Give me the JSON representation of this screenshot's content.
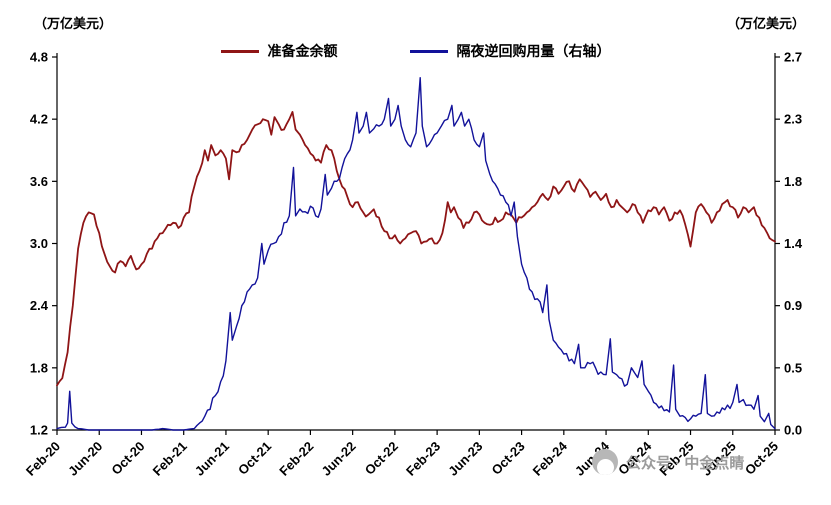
{
  "watermark": {
    "text": "公众号 · 中金点睛"
  },
  "chart_data": {
    "type": "line",
    "title": "",
    "grid": false,
    "legend_position": "top",
    "x_domain": [
      0,
      68
    ],
    "x_tick_positions": [
      0,
      4,
      8,
      12,
      16,
      20,
      24,
      28,
      32,
      36,
      40,
      44,
      48,
      52,
      56,
      60,
      64,
      68
    ],
    "x_tick_labels": [
      "Feb-20",
      "Jun-20",
      "Oct-20",
      "Feb-21",
      "Jun-21",
      "Oct-21",
      "Feb-22",
      "Jun-22",
      "Oct-22",
      "Feb-23",
      "Jun-23",
      "Oct-23",
      "Feb-24",
      "Jun-24",
      "Oct-24",
      "Feb-25",
      "Jun-25",
      "Oct-25"
    ],
    "left_axis": {
      "label": "（万亿美元）",
      "range": [
        1.2,
        4.8
      ],
      "ticks": [
        "4.8",
        "4.2",
        "3.6",
        "3.0",
        "2.4",
        "1.8",
        "1.2"
      ]
    },
    "right_axis": {
      "label": "（万亿美元）",
      "range": [
        0,
        2.7
      ],
      "ticks": [
        "2.7",
        "2.3",
        "1.8",
        "1.4",
        "0.9",
        "0.5",
        "0.0"
      ]
    },
    "series": [
      {
        "name": "准备金余额",
        "axis": "left",
        "color": "#8F1516",
        "width": 1.8,
        "noise": 0.03,
        "points": [
          [
            0,
            1.63
          ],
          [
            0.5,
            1.7
          ],
          [
            1,
            1.95
          ],
          [
            1.5,
            2.4
          ],
          [
            2,
            2.95
          ],
          [
            2.5,
            3.2
          ],
          [
            3,
            3.3
          ],
          [
            3.5,
            3.28
          ],
          [
            4,
            3.1
          ],
          [
            4.5,
            2.9
          ],
          [
            5,
            2.78
          ],
          [
            5.5,
            2.72
          ],
          [
            6,
            2.83
          ],
          [
            6.5,
            2.78
          ],
          [
            7,
            2.88
          ],
          [
            7.5,
            2.75
          ],
          [
            8,
            2.8
          ],
          [
            8.5,
            2.9
          ],
          [
            9,
            2.95
          ],
          [
            9.5,
            3.05
          ],
          [
            10,
            3.1
          ],
          [
            10.5,
            3.18
          ],
          [
            11,
            3.2
          ],
          [
            11.5,
            3.15
          ],
          [
            12,
            3.25
          ],
          [
            12.5,
            3.3
          ],
          [
            13,
            3.55
          ],
          [
            13.5,
            3.7
          ],
          [
            14,
            3.9
          ],
          [
            14.3,
            3.8
          ],
          [
            14.6,
            3.95
          ],
          [
            15,
            3.85
          ],
          [
            15.5,
            3.9
          ],
          [
            16,
            3.82
          ],
          [
            16.3,
            3.62
          ],
          [
            16.6,
            3.9
          ],
          [
            17,
            3.88
          ],
          [
            17.5,
            3.95
          ],
          [
            18,
            4.0
          ],
          [
            18.5,
            4.1
          ],
          [
            19,
            4.15
          ],
          [
            19.5,
            4.2
          ],
          [
            20,
            4.18
          ],
          [
            20.3,
            4.05
          ],
          [
            20.6,
            4.22
          ],
          [
            21,
            4.15
          ],
          [
            21.5,
            4.1
          ],
          [
            22,
            4.2
          ],
          [
            22.3,
            4.27
          ],
          [
            22.6,
            4.1
          ],
          [
            23,
            4.05
          ],
          [
            23.5,
            3.95
          ],
          [
            24,
            3.87
          ],
          [
            24.5,
            3.8
          ],
          [
            25,
            3.78
          ],
          [
            25.5,
            3.95
          ],
          [
            26,
            3.9
          ],
          [
            26.5,
            3.7
          ],
          [
            27,
            3.55
          ],
          [
            27.5,
            3.45
          ],
          [
            28,
            3.35
          ],
          [
            28.5,
            3.4
          ],
          [
            29,
            3.3
          ],
          [
            29.5,
            3.28
          ],
          [
            30,
            3.33
          ],
          [
            30.5,
            3.25
          ],
          [
            31,
            3.12
          ],
          [
            31.5,
            3.05
          ],
          [
            32,
            3.08
          ],
          [
            32.5,
            3.0
          ],
          [
            33,
            3.05
          ],
          [
            33.5,
            3.1
          ],
          [
            34,
            3.12
          ],
          [
            34.5,
            3.0
          ],
          [
            35,
            3.02
          ],
          [
            35.5,
            3.05
          ],
          [
            36,
            3.0
          ],
          [
            36.5,
            3.1
          ],
          [
            37,
            3.4
          ],
          [
            37.3,
            3.3
          ],
          [
            37.6,
            3.35
          ],
          [
            38,
            3.25
          ],
          [
            38.5,
            3.15
          ],
          [
            39,
            3.2
          ],
          [
            39.5,
            3.3
          ],
          [
            40,
            3.28
          ],
          [
            40.5,
            3.2
          ],
          [
            41,
            3.18
          ],
          [
            41.5,
            3.25
          ],
          [
            42,
            3.22
          ],
          [
            42.5,
            3.3
          ],
          [
            43,
            3.28
          ],
          [
            43.5,
            3.2
          ],
          [
            44,
            3.25
          ],
          [
            44.5,
            3.3
          ],
          [
            45,
            3.35
          ],
          [
            45.5,
            3.4
          ],
          [
            46,
            3.48
          ],
          [
            46.5,
            3.42
          ],
          [
            47,
            3.55
          ],
          [
            47.5,
            3.48
          ],
          [
            48,
            3.55
          ],
          [
            48.5,
            3.6
          ],
          [
            49,
            3.5
          ],
          [
            49.5,
            3.62
          ],
          [
            50,
            3.55
          ],
          [
            50.5,
            3.45
          ],
          [
            51,
            3.5
          ],
          [
            51.5,
            3.42
          ],
          [
            52,
            3.48
          ],
          [
            52.5,
            3.35
          ],
          [
            53,
            3.42
          ],
          [
            53.5,
            3.35
          ],
          [
            54,
            3.3
          ],
          [
            54.5,
            3.38
          ],
          [
            55,
            3.3
          ],
          [
            55.5,
            3.2
          ],
          [
            56,
            3.32
          ],
          [
            56.5,
            3.35
          ],
          [
            57,
            3.28
          ],
          [
            57.5,
            3.35
          ],
          [
            58,
            3.22
          ],
          [
            58.5,
            3.3
          ],
          [
            59,
            3.32
          ],
          [
            59.5,
            3.18
          ],
          [
            60,
            2.97
          ],
          [
            60.5,
            3.3
          ],
          [
            61,
            3.38
          ],
          [
            61.5,
            3.3
          ],
          [
            62,
            3.2
          ],
          [
            62.5,
            3.3
          ],
          [
            63,
            3.38
          ],
          [
            63.5,
            3.42
          ],
          [
            64,
            3.35
          ],
          [
            64.5,
            3.25
          ],
          [
            65,
            3.35
          ],
          [
            65.5,
            3.3
          ],
          [
            66,
            3.35
          ],
          [
            66.5,
            3.25
          ],
          [
            67,
            3.15
          ],
          [
            67.5,
            3.05
          ],
          [
            68,
            3.02
          ]
        ]
      },
      {
        "name": "隔夜逆回购用量（右轴）",
        "axis": "right",
        "color": "#12129A",
        "width": 1.4,
        "noise": 0.035,
        "points": [
          [
            0,
            0.01
          ],
          [
            0.8,
            0.02
          ],
          [
            1,
            0.05
          ],
          [
            1.2,
            0.28
          ],
          [
            1.4,
            0.05
          ],
          [
            2,
            0.01
          ],
          [
            3,
            0.0
          ],
          [
            4,
            0.0
          ],
          [
            5,
            0.0
          ],
          [
            6,
            0.0
          ],
          [
            7,
            0.0
          ],
          [
            8,
            0.0
          ],
          [
            9,
            0.0
          ],
          [
            10,
            0.01
          ],
          [
            11,
            0.0
          ],
          [
            12,
            0.0
          ],
          [
            13,
            0.01
          ],
          [
            13.5,
            0.05
          ],
          [
            14,
            0.1
          ],
          [
            14.5,
            0.15
          ],
          [
            15,
            0.25
          ],
          [
            15.5,
            0.35
          ],
          [
            16,
            0.5
          ],
          [
            16.4,
            0.85
          ],
          [
            16.6,
            0.65
          ],
          [
            17,
            0.75
          ],
          [
            17.5,
            0.9
          ],
          [
            18,
            1.0
          ],
          [
            18.5,
            1.05
          ],
          [
            19,
            1.1
          ],
          [
            19.4,
            1.35
          ],
          [
            19.6,
            1.2
          ],
          [
            20,
            1.3
          ],
          [
            20.5,
            1.35
          ],
          [
            21,
            1.4
          ],
          [
            21.5,
            1.5
          ],
          [
            22,
            1.55
          ],
          [
            22.4,
            1.9
          ],
          [
            22.6,
            1.55
          ],
          [
            23,
            1.6
          ],
          [
            23.5,
            1.58
          ],
          [
            24,
            1.62
          ],
          [
            24.5,
            1.55
          ],
          [
            25,
            1.6
          ],
          [
            25.4,
            1.85
          ],
          [
            25.6,
            1.7
          ],
          [
            26,
            1.75
          ],
          [
            26.5,
            1.8
          ],
          [
            27,
            1.9
          ],
          [
            27.5,
            2.0
          ],
          [
            28,
            2.1
          ],
          [
            28.4,
            2.3
          ],
          [
            28.6,
            2.15
          ],
          [
            29,
            2.2
          ],
          [
            29.3,
            2.3
          ],
          [
            29.6,
            2.15
          ],
          [
            30,
            2.18
          ],
          [
            30.5,
            2.2
          ],
          [
            31,
            2.25
          ],
          [
            31.4,
            2.4
          ],
          [
            31.6,
            2.2
          ],
          [
            32,
            2.25
          ],
          [
            32.3,
            2.35
          ],
          [
            32.6,
            2.2
          ],
          [
            33,
            2.1
          ],
          [
            33.5,
            2.05
          ],
          [
            34,
            2.15
          ],
          [
            34.4,
            2.55
          ],
          [
            34.6,
            2.2
          ],
          [
            35,
            2.05
          ],
          [
            35.5,
            2.1
          ],
          [
            36,
            2.15
          ],
          [
            36.4,
            2.2
          ],
          [
            37,
            2.25
          ],
          [
            37.4,
            2.35
          ],
          [
            37.6,
            2.2
          ],
          [
            38,
            2.25
          ],
          [
            38.3,
            2.3
          ],
          [
            38.6,
            2.2
          ],
          [
            39,
            2.25
          ],
          [
            39.5,
            2.1
          ],
          [
            40,
            2.05
          ],
          [
            40.4,
            2.15
          ],
          [
            40.6,
            1.95
          ],
          [
            41,
            1.85
          ],
          [
            41.5,
            1.78
          ],
          [
            42,
            1.7
          ],
          [
            42.5,
            1.65
          ],
          [
            43,
            1.55
          ],
          [
            43.3,
            1.65
          ],
          [
            43.6,
            1.4
          ],
          [
            44,
            1.2
          ],
          [
            44.5,
            1.1
          ],
          [
            45,
            1.0
          ],
          [
            45.5,
            0.95
          ],
          [
            46,
            0.85
          ],
          [
            46.4,
            1.05
          ],
          [
            46.6,
            0.8
          ],
          [
            47,
            0.65
          ],
          [
            47.5,
            0.6
          ],
          [
            48,
            0.55
          ],
          [
            48.5,
            0.5
          ],
          [
            49,
            0.48
          ],
          [
            49.4,
            0.62
          ],
          [
            49.6,
            0.45
          ],
          [
            50,
            0.45
          ],
          [
            50.5,
            0.48
          ],
          [
            51,
            0.45
          ],
          [
            51.5,
            0.42
          ],
          [
            52,
            0.4
          ],
          [
            52.4,
            0.66
          ],
          [
            52.6,
            0.42
          ],
          [
            53,
            0.4
          ],
          [
            53.5,
            0.37
          ],
          [
            54,
            0.33
          ],
          [
            54.4,
            0.45
          ],
          [
            55,
            0.38
          ],
          [
            55.4,
            0.5
          ],
          [
            55.6,
            0.33
          ],
          [
            56,
            0.28
          ],
          [
            56.5,
            0.2
          ],
          [
            57,
            0.16
          ],
          [
            57.5,
            0.14
          ],
          [
            58,
            0.13
          ],
          [
            58.4,
            0.47
          ],
          [
            58.6,
            0.15
          ],
          [
            59,
            0.1
          ],
          [
            59.5,
            0.09
          ],
          [
            60,
            0.08
          ],
          [
            60.5,
            0.1
          ],
          [
            61,
            0.12
          ],
          [
            61.4,
            0.4
          ],
          [
            61.6,
            0.12
          ],
          [
            62,
            0.1
          ],
          [
            62.5,
            0.13
          ],
          [
            63,
            0.16
          ],
          [
            63.5,
            0.18
          ],
          [
            64,
            0.2
          ],
          [
            64.4,
            0.33
          ],
          [
            64.6,
            0.2
          ],
          [
            65,
            0.22
          ],
          [
            65.5,
            0.18
          ],
          [
            66,
            0.15
          ],
          [
            66.4,
            0.25
          ],
          [
            66.6,
            0.1
          ],
          [
            67,
            0.06
          ],
          [
            67.4,
            0.12
          ],
          [
            67.6,
            0.04
          ],
          [
            68,
            0.01
          ]
        ]
      }
    ]
  }
}
